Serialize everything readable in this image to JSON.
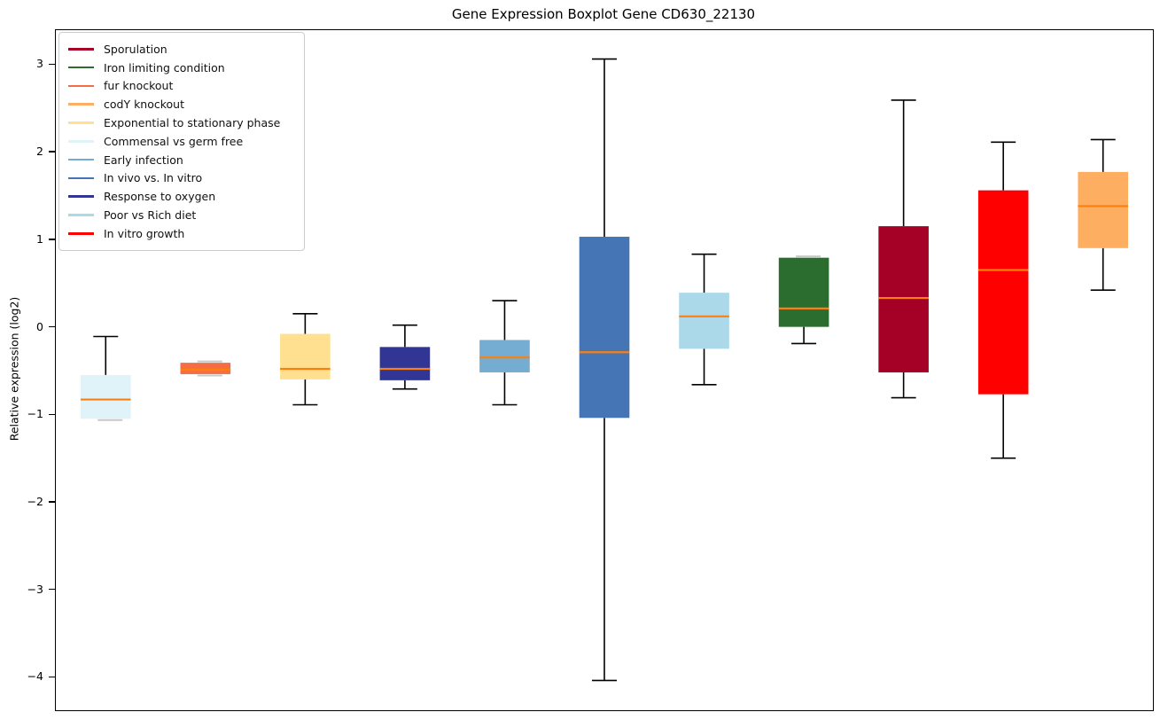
{
  "chart_data": {
    "type": "boxplot",
    "title": "Gene Expression Boxplot Gene CD630_22130",
    "ylabel": "Relative expression (log2)",
    "xlabel": "",
    "ylim": [
      -4.37,
      3.4
    ],
    "yticks": [
      3,
      2,
      1,
      0,
      -1,
      -2,
      -3,
      -4
    ],
    "ytick_labels": [
      "3",
      "2",
      "1",
      "0",
      "−1",
      "−2",
      "−3",
      "−4"
    ],
    "xtick_labels": [],
    "grid": false,
    "whisker_color": "#000000",
    "median_color": "#ff7f0e",
    "ghost_cap_color": "#c9c9c9",
    "legend_position": "upper left",
    "legend": [
      {
        "label": "Sporulation",
        "color": "#a50026"
      },
      {
        "label": "Iron limiting condition",
        "color": "#2a6d2e"
      },
      {
        "label": "fur knockout",
        "color": "#f46d43"
      },
      {
        "label": "codY knockout",
        "color": "#fdae61"
      },
      {
        "label": "Exponential to stationary phase",
        "color": "#fee090"
      },
      {
        "label": "Commensal vs germ free",
        "color": "#e0f3f8"
      },
      {
        "label": "Early infection",
        "color": "#74add1"
      },
      {
        "label": "In vivo vs. In vitro",
        "color": "#4575b4"
      },
      {
        "label": "Response to oxygen",
        "color": "#313695"
      },
      {
        "label": "Poor vs Rich diet",
        "color": "#abd9e9"
      },
      {
        "label": "In vitro growth",
        "color": "#ff0000"
      }
    ],
    "boxes": [
      {
        "label": "Commensal vs germ free",
        "color": "#e0f3f8",
        "whisker_low": -1.04,
        "q1": -1.04,
        "median": -0.82,
        "q3": -0.54,
        "whisker_high": -0.1
      },
      {
        "label": "fur knockout",
        "color": "#f46d43",
        "whisker_low": -0.53,
        "q1": -0.53,
        "median": -0.48,
        "q3": -0.4,
        "whisker_high": -0.4
      },
      {
        "label": "Exponential to stationary phase",
        "color": "#fee090",
        "whisker_low": -0.88,
        "q1": -0.59,
        "median": -0.47,
        "q3": -0.07,
        "whisker_high": 0.16
      },
      {
        "label": "Response to oxygen",
        "color": "#313695",
        "whisker_low": -0.7,
        "q1": -0.6,
        "median": -0.47,
        "q3": -0.22,
        "whisker_high": 0.03
      },
      {
        "label": "Early infection",
        "color": "#74add1",
        "whisker_low": -0.88,
        "q1": -0.51,
        "median": -0.34,
        "q3": -0.14,
        "whisker_high": 0.31
      },
      {
        "label": "In vivo vs. In vitro",
        "color": "#4575b4",
        "whisker_low": -4.03,
        "q1": -1.03,
        "median": -0.28,
        "q3": 1.04,
        "whisker_high": 3.07
      },
      {
        "label": "Poor vs Rich diet",
        "color": "#abd9e9",
        "whisker_low": -0.65,
        "q1": -0.24,
        "median": 0.13,
        "q3": 0.4,
        "whisker_high": 0.84
      },
      {
        "label": "Iron limiting condition",
        "color": "#2a6d2e",
        "whisker_low": -0.18,
        "q1": 0.01,
        "median": 0.22,
        "q3": 0.8,
        "whisker_high": 0.8
      },
      {
        "label": "Sporulation",
        "color": "#a50026",
        "whisker_low": -0.8,
        "q1": -0.51,
        "median": 0.34,
        "q3": 1.16,
        "whisker_high": 2.6
      },
      {
        "label": "In vitro growth",
        "color": "#ff0000",
        "whisker_low": -1.49,
        "q1": -0.76,
        "median": 0.66,
        "q3": 1.57,
        "whisker_high": 2.12
      },
      {
        "label": "codY knockout",
        "color": "#fdae61",
        "whisker_low": 0.43,
        "q1": 0.91,
        "median": 1.39,
        "q3": 1.78,
        "whisker_high": 2.15
      }
    ]
  }
}
